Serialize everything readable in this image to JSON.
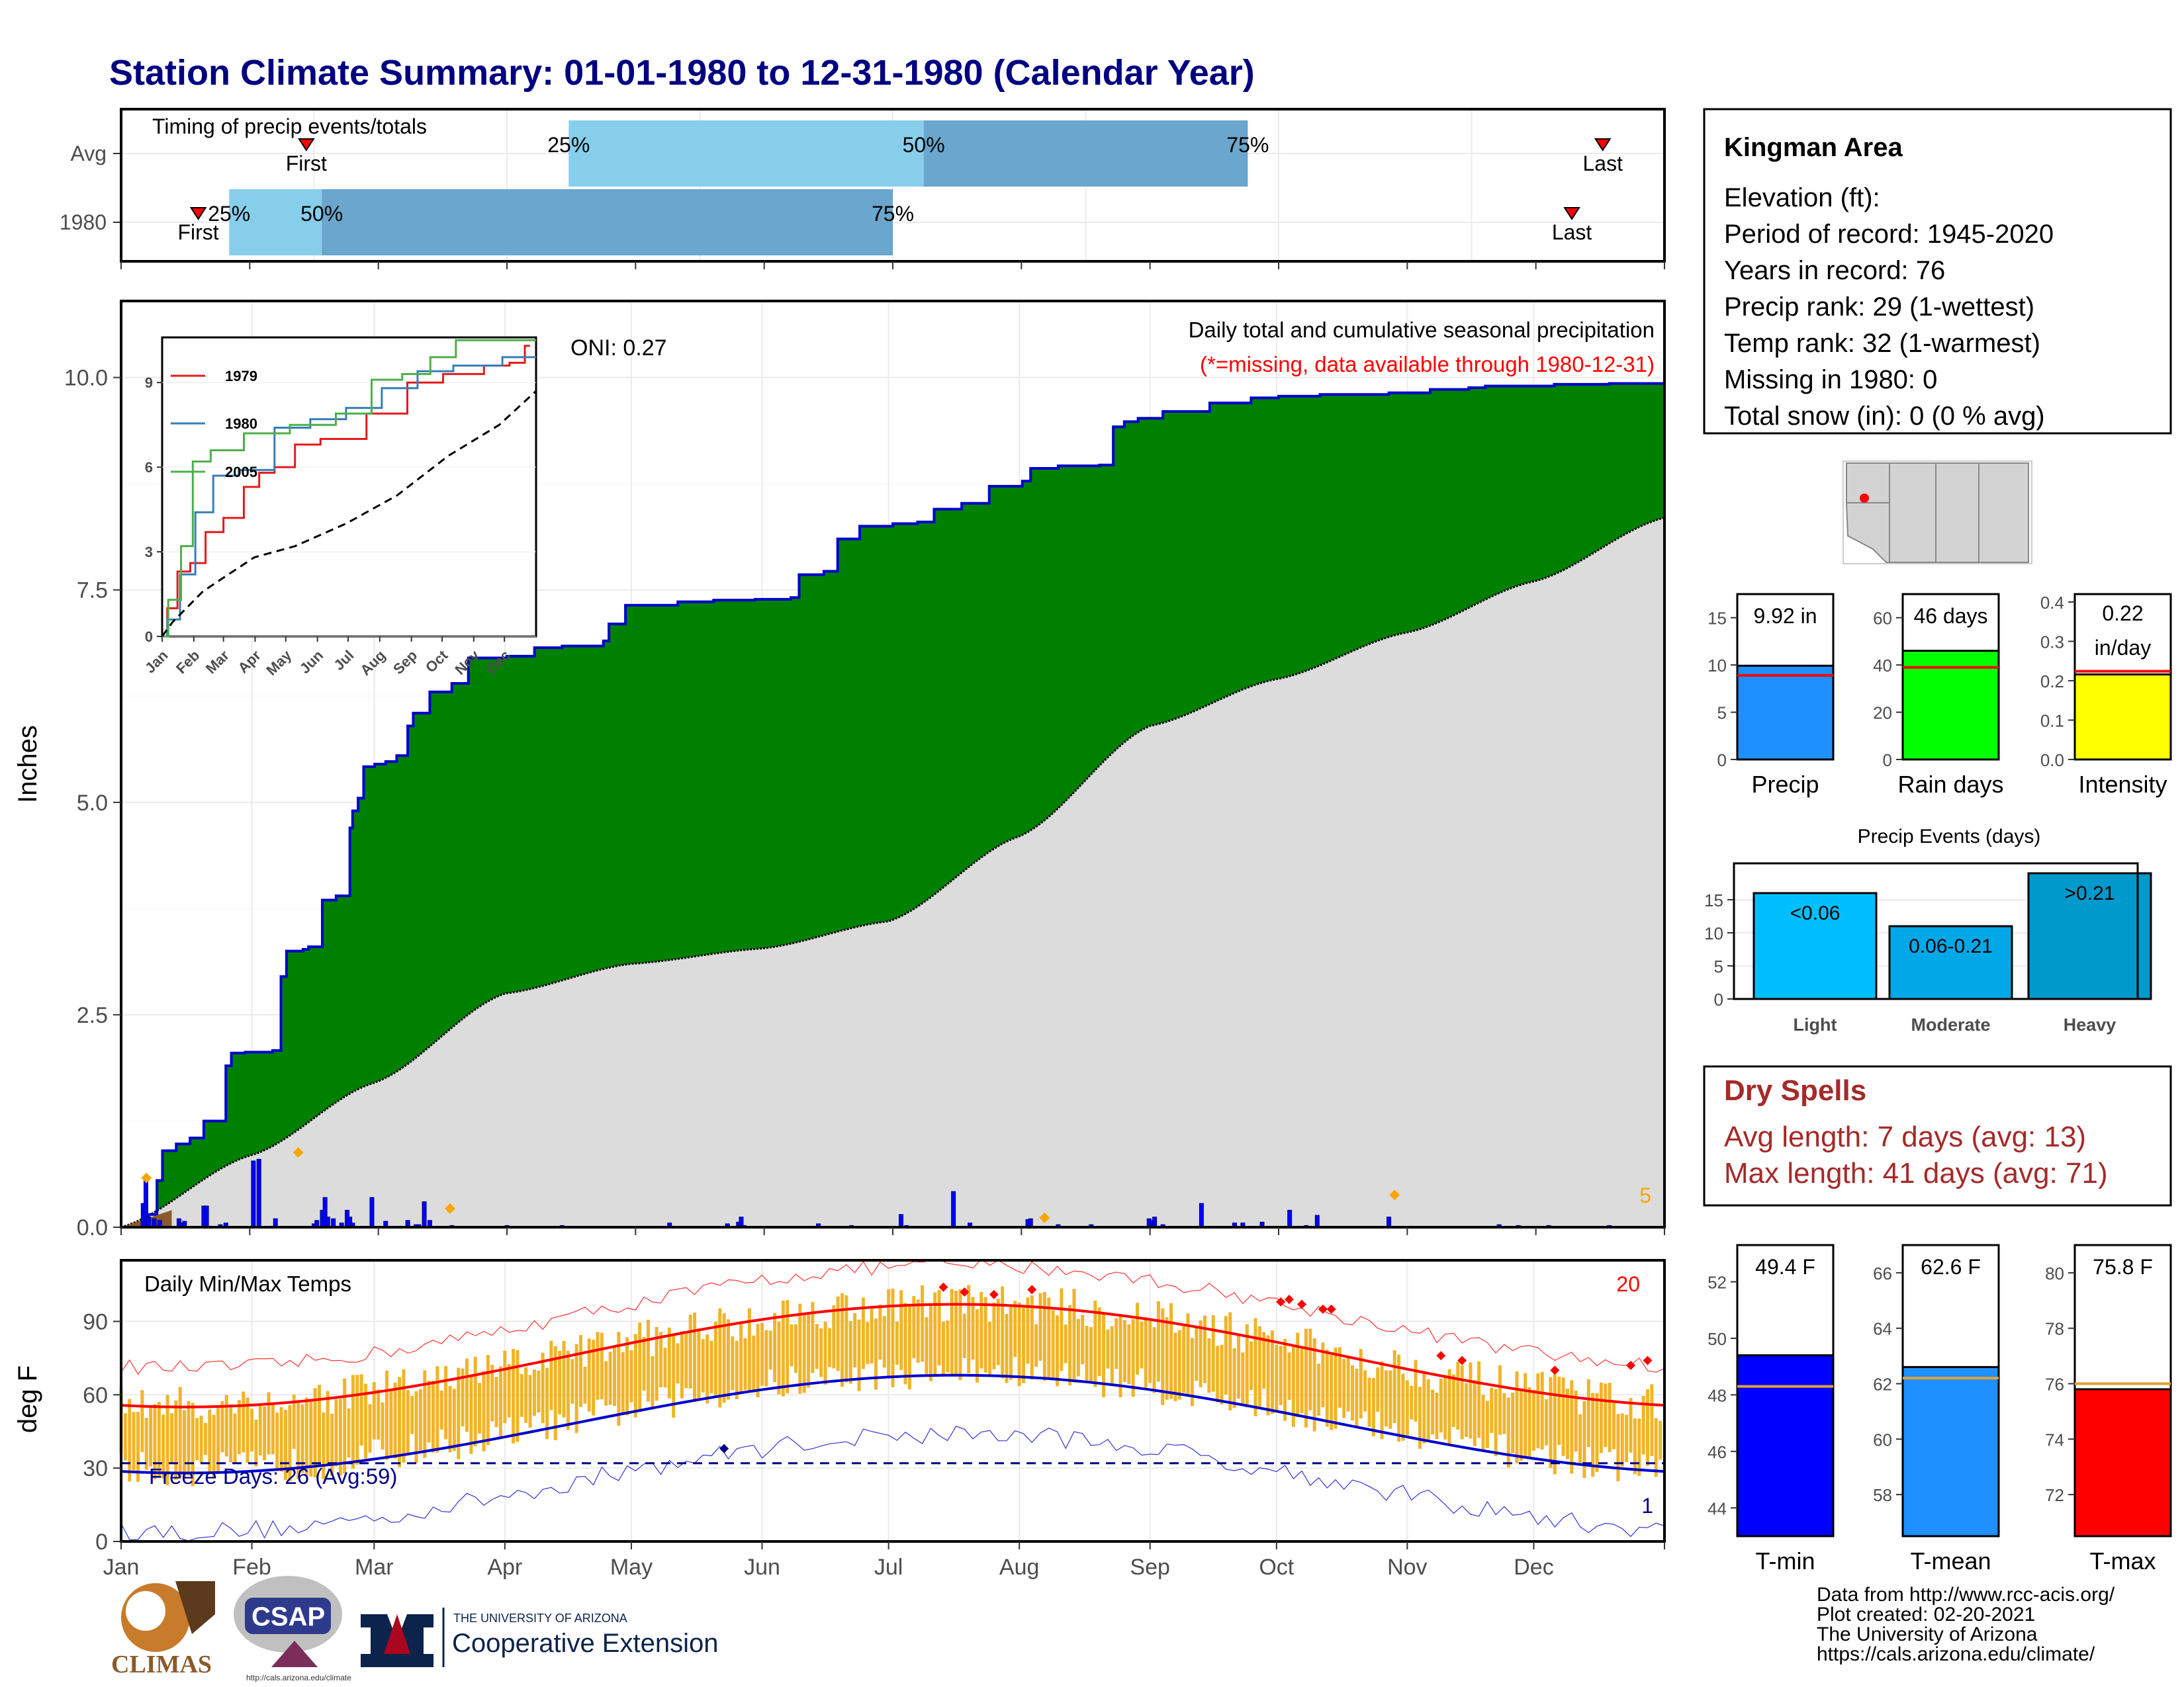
{
  "title": "Station Climate Summary: 01-01-1980 to 12-31-1980 (Calendar Year)",
  "colors": {
    "title": "#000080",
    "precip_area": "#008000",
    "avg_area": "#dcdcdc",
    "cum_line": "#0000cd",
    "daily_bar": "#0000ff",
    "temp_bar": "#f0b429",
    "max_line": "#ff0000",
    "min_line": "#0000cd",
    "dry_spell": "#a52a2a"
  },
  "timing": {
    "title": "Timing of precip events/totals",
    "rows": [
      {
        "label": "Avg",
        "first": 0.12,
        "p25": 0.29,
        "p50": 0.52,
        "p75": 0.73,
        "last": 0.96
      },
      {
        "label": "1980",
        "first": 0.05,
        "p25": 0.07,
        "p50": 0.13,
        "p75": 0.5,
        "last": 0.94
      }
    ],
    "labels": {
      "first": "First",
      "last": "Last",
      "p25": "25%",
      "p50": "50%",
      "p75": "75%"
    }
  },
  "precip_panel": {
    "ylabel": "Inches",
    "yticks": [
      "0.0",
      "2.5",
      "5.0",
      "7.5",
      "10.0"
    ],
    "oni": "ONI: 0.27",
    "note1": "Daily total and cumulative seasonal precipitation",
    "note2": "(*=missing, data available through 1980-12-31)",
    "corner": "5",
    "ylim": [
      0,
      10.9
    ]
  },
  "inset": {
    "yticks": [
      "0",
      "3",
      "6",
      "9"
    ],
    "xticks": [
      "Jan",
      "Feb",
      "Mar",
      "Apr",
      "May",
      "Jun",
      "Jul",
      "Aug",
      "Sep",
      "Oct",
      "Nov",
      "Dec"
    ],
    "legend": [
      {
        "name": "1979",
        "color": "#e41a1c"
      },
      {
        "name": "1980",
        "color": "#377eb8"
      },
      {
        "name": "2005",
        "color": "#4daf4a"
      }
    ]
  },
  "temp_panel": {
    "title": "Daily Min/Max Temps",
    "ylabel": "deg F",
    "yticks": [
      "0",
      "30",
      "60",
      "90"
    ],
    "freeze": "Freeze Days: 26 (Avg:59)",
    "corner_top": "20",
    "corner_bottom": "1",
    "ylim": [
      0,
      115
    ]
  },
  "months": [
    "Jan",
    "Feb",
    "Mar",
    "Apr",
    "May",
    "Jun",
    "Jul",
    "Aug",
    "Sep",
    "Oct",
    "Nov",
    "Dec"
  ],
  "station": {
    "name": "Kingman Area",
    "lines": [
      "Elevation (ft):",
      "Period of record: 1945-2020",
      "Years in record: 76",
      "Precip rank: 29 (1-wettest)",
      "Temp rank: 32 (1-warmest)",
      "Missing in 1980: 0",
      "Total snow (in): 0 (0 % avg)"
    ]
  },
  "mini_bars": [
    {
      "label": "Precip",
      "value_text": "9.92 in",
      "value": 9.92,
      "avg": 8.9,
      "ymax": 17.5,
      "yticks": [
        "0",
        "5",
        "10",
        "15"
      ],
      "ytickvals": [
        0,
        5,
        10,
        15
      ],
      "color": "#1e90ff"
    },
    {
      "label": "Rain days",
      "value_text": "46 days",
      "value": 46,
      "avg": 39,
      "ymax": 70,
      "yticks": [
        "0",
        "20",
        "40",
        "60"
      ],
      "ytickvals": [
        0,
        20,
        40,
        60
      ],
      "color": "#00ff00"
    },
    {
      "label": "Intensity",
      "value_text1": "0.22",
      "value_text2": "in/day",
      "value": 0.216,
      "avg": 0.224,
      "ymax": 0.42,
      "yticks": [
        "0.0",
        "0.1",
        "0.2",
        "0.3",
        "0.4"
      ],
      "ytickvals": [
        0,
        0.1,
        0.2,
        0.3,
        0.4
      ],
      "color": "#ffff00"
    }
  ],
  "events": {
    "title": "Precip Events (days)",
    "yticks": [
      "0",
      "5",
      "10",
      "15"
    ],
    "bars": [
      {
        "name": "Light",
        "label": "<0.06",
        "value": 16,
        "color": "#00bfff"
      },
      {
        "name": "Moderate",
        "label": "0.06-0.21",
        "value": 11,
        "color": "#00a8e8"
      },
      {
        "name": "Heavy",
        "label": ">0.21",
        "value": 19,
        "color": "#0099cc"
      }
    ]
  },
  "dry": {
    "title": "Dry Spells",
    "line1": "Avg length: 7 days (avg: 13)",
    "line2": "Max length: 41 days (avg: 71)"
  },
  "temp_bars": [
    {
      "label": "T-min",
      "value_text": "49.4 F",
      "value": 49.4,
      "avg": 48.3,
      "ymin": 43,
      "ymax": 53.3,
      "yticks": [
        "44",
        "46",
        "48",
        "50",
        "52"
      ],
      "ytickvals": [
        44,
        46,
        48,
        50,
        52
      ],
      "color": "#0000ff"
    },
    {
      "label": "T-mean",
      "value_text": "62.6 F",
      "value": 62.6,
      "avg": 62.2,
      "ymin": 56.5,
      "ymax": 67,
      "yticks": [
        "58",
        "60",
        "62",
        "64",
        "66"
      ],
      "ytickvals": [
        58,
        60,
        62,
        64,
        66
      ],
      "color": "#1e90ff"
    },
    {
      "label": "T-max",
      "value_text": "75.8 F",
      "value": 75.8,
      "avg": 76.0,
      "ymin": 70.5,
      "ymax": 81,
      "yticks": [
        "72",
        "74",
        "76",
        "78",
        "80"
      ],
      "ytickvals": [
        72,
        74,
        76,
        78,
        80
      ],
      "color": "#ff0000"
    }
  ],
  "footer": [
    "Data from http://www.rcc-acis.org/",
    "Plot created: 02-20-2021",
    "The University of Arizona",
    "https://cals.arizona.edu/climate/"
  ],
  "logos": {
    "climas": "CLIMAS",
    "csap": "CSAP",
    "csap_url": "http://cals.arizona.edu/climate",
    "ua_small": "THE UNIVERSITY OF ARIZONA",
    "ua_big": "Cooperative Extension"
  }
}
